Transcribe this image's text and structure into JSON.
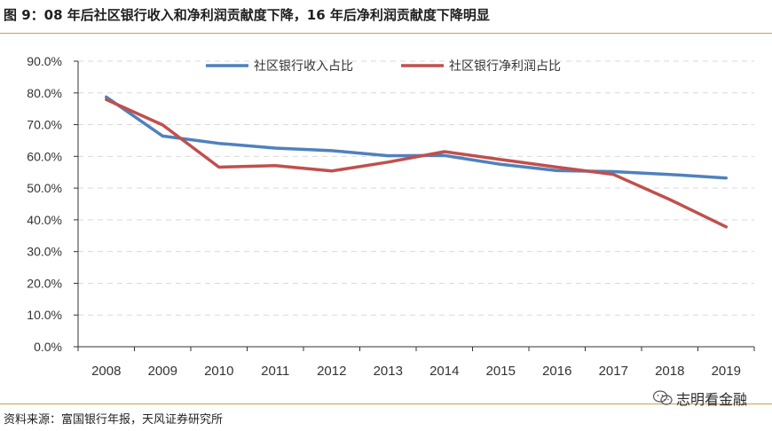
{
  "header": {
    "title": "图 9：08 年后社区银行收入和净利润贡献度下降，16 年后净利润贡献度下降明显"
  },
  "footer": {
    "source": "资料来源：富国银行年报，天风证券研究所",
    "watermark": "志明看金融"
  },
  "chart_data": {
    "type": "line",
    "title": "",
    "xlabel": "",
    "ylabel": "",
    "x": [
      "2008",
      "2009",
      "2010",
      "2011",
      "2012",
      "2013",
      "2014",
      "2015",
      "2016",
      "2017",
      "2018",
      "2019"
    ],
    "y_ticks": [
      "0.0%",
      "10.0%",
      "20.0%",
      "30.0%",
      "40.0%",
      "50.0%",
      "60.0%",
      "70.0%",
      "80.0%",
      "90.0%"
    ],
    "ylim": [
      0,
      90
    ],
    "y_unit": "%",
    "grid": "horizontal-dashed",
    "legend_position": "top-center",
    "series": [
      {
        "name": "社区银行收入占比",
        "color": "#4f81bd",
        "values": [
          78.7,
          66.4,
          64.1,
          62.6,
          61.8,
          60.2,
          60.3,
          57.5,
          55.5,
          55.2,
          54.3,
          53.2
        ]
      },
      {
        "name": "社区银行净利润占比",
        "color": "#c0504d",
        "values": [
          77.9,
          69.9,
          56.6,
          57.1,
          55.4,
          58.2,
          61.5,
          59.0,
          56.6,
          54.3,
          46.4,
          37.8
        ]
      }
    ]
  }
}
